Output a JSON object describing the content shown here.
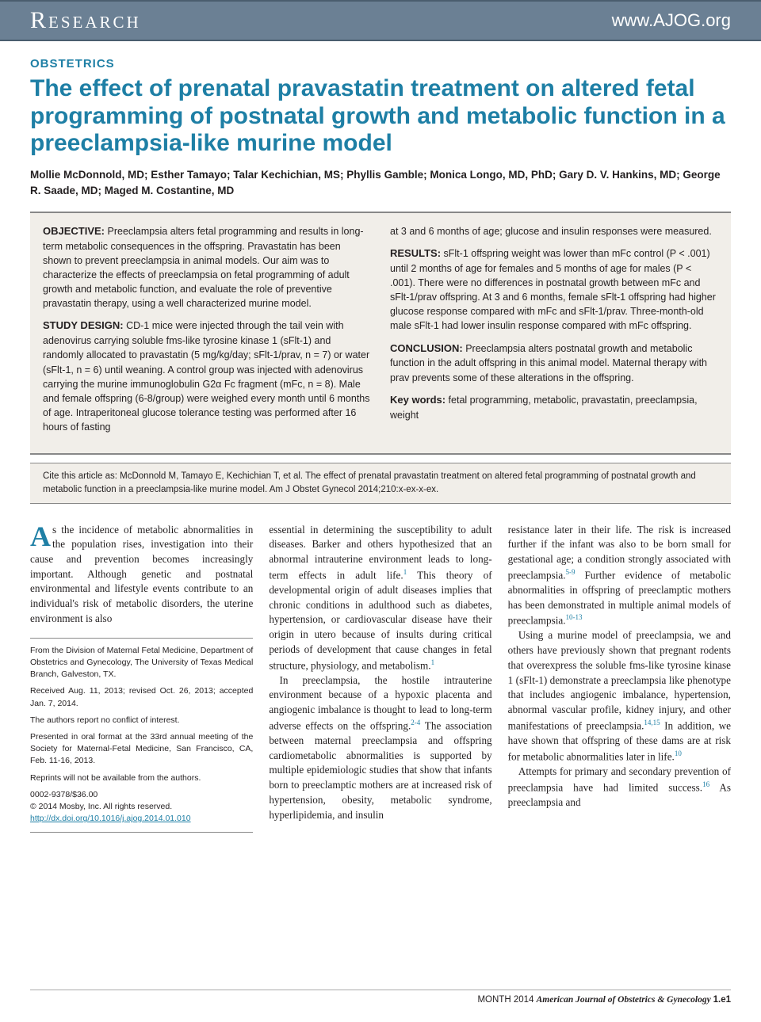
{
  "header": {
    "left": "Research",
    "right": "www.AJOG.org"
  },
  "category": "OBSTETRICS",
  "title": "The effect of prenatal pravastatin treatment on altered fetal programming of postnatal growth and metabolic function in a preeclampsia-like murine model",
  "authors": "Mollie McDonnold, MD; Esther Tamayo; Talar Kechichian, MS; Phyllis Gamble; Monica Longo, MD, PhD; Gary D. V. Hankins, MD; George R. Saade, MD; Maged M. Costantine, MD",
  "abstract": {
    "objective_head": "OBJECTIVE:",
    "objective": " Preeclampsia alters fetal programming and results in long-term metabolic consequences in the offspring. Pravastatin has been shown to prevent preeclampsia in animal models. Our aim was to characterize the effects of preeclampsia on fetal programming of adult growth and metabolic function, and evaluate the role of preventive pravastatin therapy, using a well characterized murine model.",
    "design_head": "STUDY DESIGN:",
    "design": " CD-1 mice were injected through the tail vein with adenovirus carrying soluble fms-like tyrosine kinase 1 (sFlt-1) and randomly allocated to pravastatin (5 mg/kg/day; sFlt-1/prav, n = 7) or water (sFlt-1, n = 6) until weaning. A control group was injected with adenovirus carrying the murine immunoglobulin G2α Fc fragment (mFc, n = 8). Male and female offspring (6-8/group) were weighed every month until 6 months of age. Intraperitoneal glucose tolerance testing was performed after 16 hours of fasting",
    "col2_top": "at 3 and 6 months of age; glucose and insulin responses were measured.",
    "results_head": "RESULTS:",
    "results": " sFlt-1 offspring weight was lower than mFc control (P < .001) until 2 months of age for females and 5 months of age for males (P < .001). There were no differences in postnatal growth between mFc and sFlt-1/prav offspring. At 3 and 6 months, female sFlt-1 offspring had higher glucose response compared with mFc and sFlt-1/prav. Three-month-old male sFlt-1 had lower insulin response compared with mFc offspring.",
    "conclusion_head": "CONCLUSION:",
    "conclusion": " Preeclampsia alters postnatal growth and metabolic function in the adult offspring in this animal model. Maternal therapy with prav prevents some of these alterations in the offspring.",
    "keywords_head": "Key words:",
    "keywords": " fetal programming, metabolic, pravastatin, preeclampsia, weight"
  },
  "citation": "Cite this article as: McDonnold M, Tamayo E, Kechichian T, et al. The effect of prenatal pravastatin treatment on altered fetal programming of postnatal growth and metabolic function in a preeclampsia-like murine model. Am J Obstet Gynecol 2014;210:x-ex-x-ex.",
  "body": {
    "col1_p1_first": "A",
    "col1_p1": "s the incidence of metabolic abnormalities in the population rises, investigation into their cause and prevention becomes increasingly important. Although genetic and postnatal environmental and lifestyle events contribute to an individual's risk of metabolic disorders, the uterine environment is also",
    "col2_p1": "essential in determining the susceptibility to adult diseases. Barker and others hypothesized that an abnormal intrauterine environment leads to long-term effects in adult life.",
    "col2_p1b": " This theory of developmental origin of adult diseases implies that chronic conditions in adulthood such as diabetes, hypertension, or cardiovascular disease have their origin in utero because of insults during critical periods of development that cause changes in fetal structure, physiology, and metabolism.",
    "col2_p2": "In preeclampsia, the hostile intrauterine environment because of a hypoxic placenta and angiogenic imbalance is thought to lead to long-term adverse effects on the offspring.",
    "col2_p2b": " The association between maternal preeclampsia and offspring cardiometabolic abnormalities is supported by multiple epidemiologic studies that show that infants born to preeclamptic mothers are at increased risk of hypertension, obesity, metabolic syndrome, hyperlipidemia, and insulin",
    "col3_p1": "resistance later in their life. The risk is increased further if the infant was also to be born small for gestational age; a condition strongly associated with preeclampsia.",
    "col3_p1b": " Further evidence of metabolic abnormalities in offspring of preeclamptic mothers has been demonstrated in multiple animal models of preeclampsia.",
    "col3_p2": "Using a murine model of preeclampsia, we and others have previously shown that pregnant rodents that overexpress the soluble fms-like tyrosine kinase 1 (sFlt-1) demonstrate a preeclampsia like phenotype that includes angiogenic imbalance, hypertension, abnormal vascular profile, kidney injury, and other manifestations of preeclampsia.",
    "col3_p2b": " In addition, we have shown that offspring of these dams are at risk for metabolic abnormalities later in life.",
    "col3_p3": "Attempts for primary and secondary prevention of preeclampsia have had limited success.",
    "col3_p3b": " As preeclampsia and"
  },
  "info": {
    "p1": "From the Division of Maternal Fetal Medicine, Department of Obstetrics and Gynecology, The University of Texas Medical Branch, Galveston, TX.",
    "p2": "Received Aug. 11, 2013; revised Oct. 26, 2013; accepted Jan. 7, 2014.",
    "p3": "The authors report no conflict of interest.",
    "p4": "Presented in oral format at the 33rd annual meeting of the Society for Maternal-Fetal Medicine, San Francisco, CA, Feb. 11-16, 2013.",
    "p5": "Reprints will not be available from the authors.",
    "p6a": "0002-9378/$36.00",
    "p6b": "© 2014 Mosby, Inc. All rights reserved.",
    "doi": "http://dx.doi.org/10.1016/j.ajog.2014.01.010"
  },
  "refs": {
    "r1": "1",
    "r24": "2-4",
    "r59": "5-9",
    "r1013": "10-13",
    "r1415": "14,15",
    "r10": "10",
    "r16": "16"
  },
  "footer": {
    "month": "MONTH 2014",
    "journal": "American Journal of Obstetrics & Gynecology",
    "page": "1.e1"
  }
}
